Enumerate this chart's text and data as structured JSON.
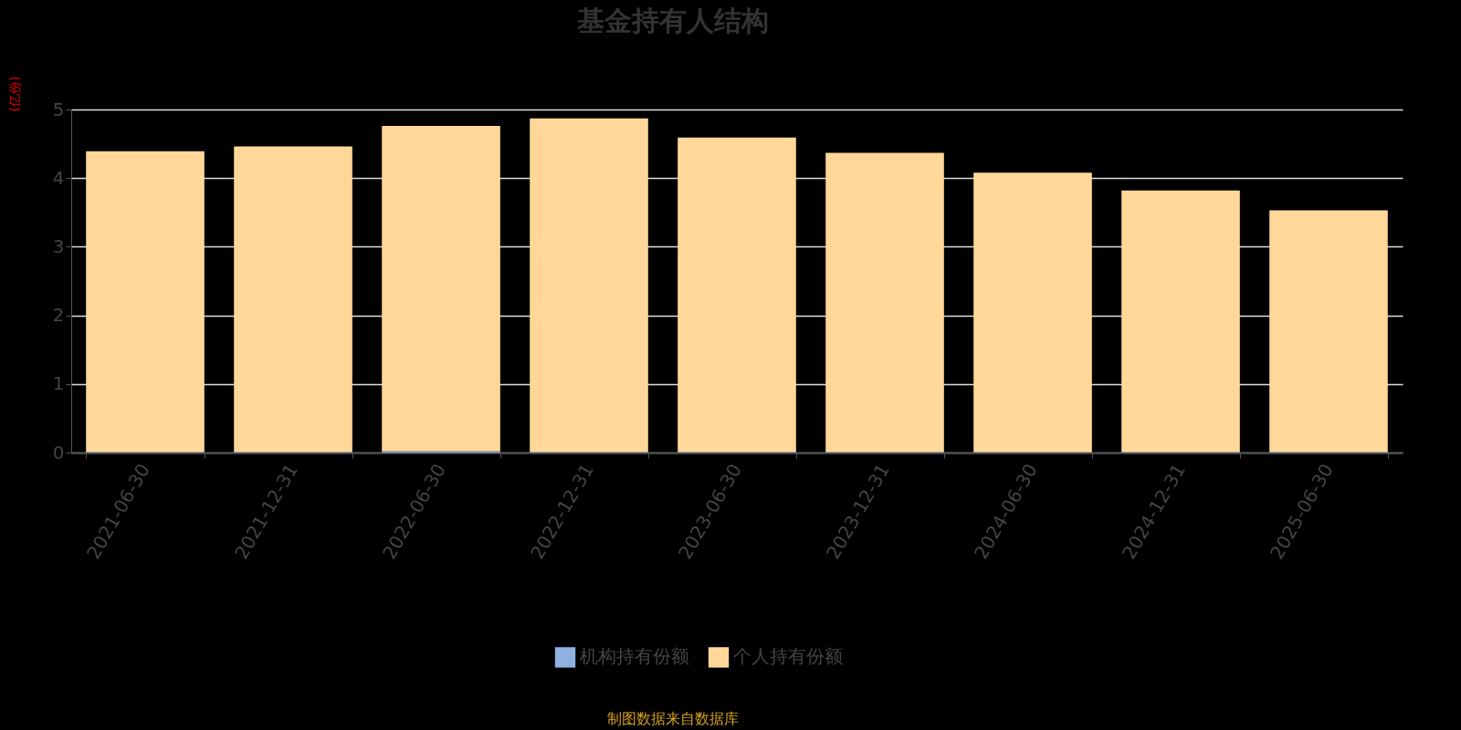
{
  "chart_data": {
    "type": "bar",
    "title": "基金持有人结构",
    "ylabel": "(亿份)",
    "categories": [
      "2021-06-30",
      "2021-12-31",
      "2022-06-30",
      "2022-12-31",
      "2023-06-30",
      "2023-12-31",
      "2024-06-30",
      "2024-12-31",
      "2025-06-30"
    ],
    "stacked": true,
    "series": [
      {
        "name": "机构持有份额",
        "color": "#8eb1e0",
        "values": [
          0.01,
          0.01,
          0.02,
          0.01,
          0.01,
          0.01,
          0.01,
          0.01,
          0.01
        ]
      },
      {
        "name": "个人持有份额",
        "color": "#ffd899",
        "values": [
          4.38,
          4.45,
          4.74,
          4.86,
          4.58,
          4.36,
          4.07,
          3.81,
          3.52
        ]
      }
    ],
    "ylim": [
      0,
      5
    ],
    "yticks": [
      0,
      1,
      2,
      3,
      4,
      5
    ],
    "grid": "y",
    "legend": "bottom",
    "annotations": [
      "制图数据来自数据库"
    ]
  }
}
